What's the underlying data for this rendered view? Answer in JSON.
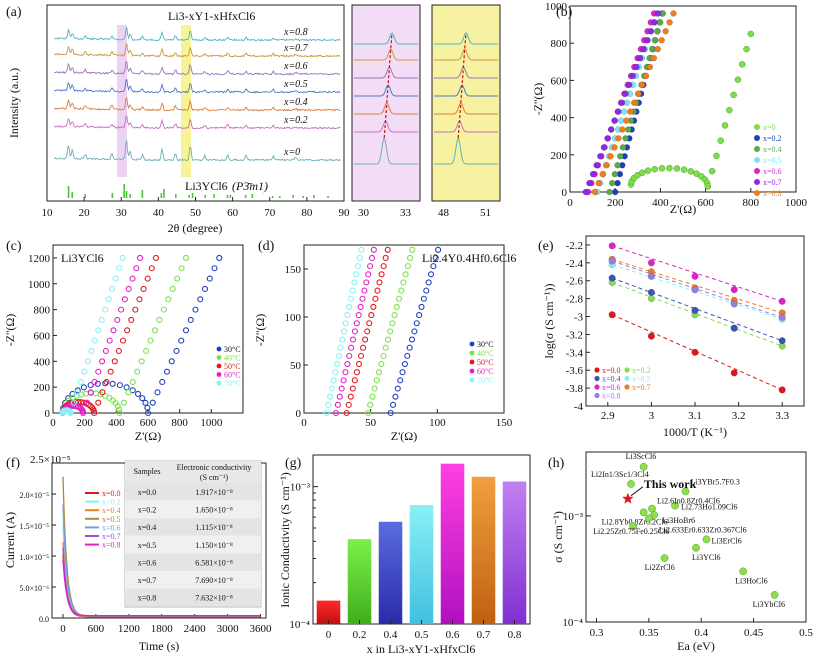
{
  "figure": {
    "panel_labels": [
      "(a)",
      "(b)",
      "(c)",
      "(d)",
      "(e)",
      "(f)",
      "(g)",
      "(h)"
    ]
  },
  "chart_data": [
    {
      "id": "a",
      "type": "line",
      "title": "Li3-xY1-xHfxCl6",
      "xlabel": "2θ (degree)",
      "ylabel": "Intensity (a.u.)",
      "xlim": [
        10,
        90
      ],
      "xticks": [
        10,
        20,
        30,
        40,
        50,
        60,
        70,
        80,
        90
      ],
      "zoom1_ticks": [
        "30",
        "33"
      ],
      "zoom2_ticks": [
        "48",
        "51"
      ],
      "series": [
        {
          "name": "x=0.8",
          "color": "#4fb7c2"
        },
        {
          "name": "x=0.7",
          "color": "#c89a3e"
        },
        {
          "name": "x=0.6",
          "color": "#9a76b8"
        },
        {
          "name": "x=0.5",
          "color": "#4e79c7"
        },
        {
          "name": "x=0.4",
          "color": "#e07b3a"
        },
        {
          "name": "x=0.2",
          "color": "#c76fc4"
        },
        {
          "name": "x=0",
          "color": "#6ab0b8"
        }
      ],
      "reference": {
        "label": "Li3YCl6",
        "space_group": "(P3̄m1)",
        "color": "#4cc43a",
        "peaks": [
          15.8,
          16.8,
          20.3,
          27.6,
          30.8,
          31.4,
          32.4,
          35.7,
          40.8,
          41.5,
          44.7,
          48.3,
          49.2,
          52.6,
          55.0,
          58.6,
          59.4,
          63.5,
          65.3,
          70.8,
          72.7,
          76.3,
          79.0,
          81.9,
          85.7
        ]
      }
    },
    {
      "id": "b",
      "type": "scatter",
      "xlabel": "Z'(Ω)",
      "ylabel": "-Z''(Ω)",
      "xlim": [
        0,
        1000
      ],
      "ylim": [
        0,
        1000
      ],
      "xticks": [
        0,
        200,
        400,
        600,
        800,
        1000
      ],
      "yticks": [
        0,
        200,
        400,
        600,
        800,
        1000
      ],
      "series": [
        {
          "name": "x=0",
          "color": "#7be04a"
        },
        {
          "name": "x=0.2",
          "color": "#1f3fbf"
        },
        {
          "name": "x=0.4",
          "color": "#5aaa4a"
        },
        {
          "name": "x=0.5",
          "color": "#7de6f5"
        },
        {
          "name": "x=0.6",
          "color": "#e020c8"
        },
        {
          "name": "x=0.7",
          "color": "#8a2be2"
        },
        {
          "name": "x=0.8",
          "color": "#f07d1c"
        }
      ]
    },
    {
      "id": "c",
      "type": "scatter",
      "title": "Li3YCl6",
      "xlabel": "Z'(Ω)",
      "ylabel": "-Z''(Ω)",
      "xlim": [
        0,
        1200
      ],
      "ylim": [
        0,
        1300
      ],
      "xticks": [
        0,
        200,
        400,
        600,
        800,
        1000
      ],
      "yticks": [
        0,
        200,
        400,
        600,
        800,
        1000,
        1200
      ],
      "series": [
        {
          "name": "30°C",
          "color": "#1f3fbf",
          "R": 600
        },
        {
          "name": "40°C",
          "color": "#7be04a",
          "R": 420
        },
        {
          "name": "50°C",
          "color": "#e0181c",
          "R": 260
        },
        {
          "name": "60°C",
          "color": "#e020c8",
          "R": 190
        },
        {
          "name": "70°C",
          "color": "#8af0f5",
          "R": 110
        }
      ]
    },
    {
      "id": "d",
      "type": "scatter",
      "title": "Li2.4Y0.4Hf0.6Cl6",
      "xlabel": "Z'(Ω)",
      "ylabel": "-Z''(Ω)",
      "xlim": [
        0,
        150
      ],
      "ylim": [
        0,
        175
      ],
      "xticks": [
        0,
        50,
        100,
        150
      ],
      "yticks": [
        0,
        50,
        100,
        150
      ],
      "series": [
        {
          "name": "30°C",
          "color": "#1f3fbf",
          "x0": 65
        },
        {
          "name": "40°C",
          "color": "#7be04a",
          "x0": 48
        },
        {
          "name": "50°C",
          "color": "#e0181c",
          "x0": 32
        },
        {
          "name": "60°C",
          "color": "#e020c8",
          "x0": 24
        },
        {
          "name": "70°C",
          "color": "#8af0f5",
          "x0": 17
        }
      ]
    },
    {
      "id": "e",
      "type": "scatter",
      "xlabel": "1000/T (K⁻¹)",
      "ylabel": "log(σ (S cm⁻¹))",
      "xlim": [
        2.85,
        3.35
      ],
      "ylim": [
        -4.0,
        -2.1
      ],
      "xticks": [
        2.9,
        3.0,
        3.1,
        3.2,
        3.3
      ],
      "yticks": [
        -4.0,
        -3.8,
        -3.6,
        -3.4,
        -3.2,
        -3.0,
        -2.8,
        -2.6,
        -2.4,
        -2.2
      ],
      "x": [
        2.91,
        3.0,
        3.1,
        3.19,
        3.3
      ],
      "series": [
        {
          "name": "x=0.0",
          "color": "#e0181c",
          "values": [
            -2.98,
            -3.22,
            -3.4,
            -3.63,
            -3.82
          ]
        },
        {
          "name": "x=0.2",
          "color": "#8ad95a",
          "values": [
            -2.62,
            -2.8,
            -2.98,
            -3.13,
            -3.33
          ]
        },
        {
          "name": "x=0.4",
          "color": "#3a55b5",
          "values": [
            -2.57,
            -2.73,
            -2.93,
            -3.13,
            -3.27
          ]
        },
        {
          "name": "x=0.5",
          "color": "#8af0f5",
          "values": [
            -2.42,
            -2.55,
            -2.7,
            -2.85,
            -3.03
          ]
        },
        {
          "name": "x=0.6",
          "color": "#e020c8",
          "values": [
            -2.21,
            -2.4,
            -2.55,
            -2.7,
            -2.83
          ]
        },
        {
          "name": "x=0.7",
          "color": "#f07d1c",
          "values": [
            -2.36,
            -2.5,
            -2.68,
            -2.82,
            -2.96
          ]
        },
        {
          "name": "x=0.8",
          "color": "#9b7de0",
          "values": [
            -2.38,
            -2.55,
            -2.7,
            -2.86,
            -3.01
          ]
        }
      ]
    },
    {
      "id": "f",
      "type": "line",
      "xlabel": "Time (s)",
      "ylabel": "Current (A)",
      "ylim_label": "2.5×10⁻⁵",
      "xlim": [
        -200,
        3700
      ],
      "ylim": [
        0,
        2.5e-05
      ],
      "xticks": [
        0,
        600,
        1200,
        1800,
        2400,
        3000,
        3600
      ],
      "ytick_labels": [
        "0.0",
        "5.0×10⁻⁶",
        "1.0×10⁻⁵",
        "1.5×10⁻⁵",
        "2.0×10⁻⁵"
      ],
      "series": [
        {
          "name": "x=0.0",
          "color": "#e0181c",
          "peak": 1e-05
        },
        {
          "name": "x=0.2",
          "color": "#8af0f5",
          "peak": 1.5e-05
        },
        {
          "name": "x=0.4",
          "color": "#f07d1c",
          "peak": 1.2e-05
        },
        {
          "name": "x=0.5",
          "color": "#a88a3a",
          "peak": 2.25e-05
        },
        {
          "name": "x=0.6",
          "color": "#7aa0e0",
          "peak": 1.8e-05
        },
        {
          "name": "x=0.7",
          "color": "#9b4de0",
          "peak": 1.1e-05
        },
        {
          "name": "x=0.8",
          "color": "#e020c8",
          "peak": 9e-06
        }
      ],
      "table": {
        "headers": [
          "Samples",
          "Electronic conductivity",
          "(S cm⁻¹)"
        ],
        "rows": [
          [
            "x=0.0",
            "1.917×10⁻⁸"
          ],
          [
            "x=0.2",
            "1.650×10⁻⁸"
          ],
          [
            "x=0.4",
            "1.115×10⁻⁸"
          ],
          [
            "x=0.5",
            "1.150×10⁻⁸"
          ],
          [
            "x=0.6",
            "6.581×10⁻⁸"
          ],
          [
            "x=0.7",
            "7.690×10⁻⁸"
          ],
          [
            "x=0.8",
            "7.632×10⁻⁸"
          ]
        ]
      }
    },
    {
      "id": "g",
      "type": "bar",
      "xlabel": "x in Li3-xY1-xHfxCl6",
      "ylabel": "Ionic Conductivity (S cm⁻¹)",
      "yscale": "log",
      "ylim": [
        0.0001,
        0.0017
      ],
      "ytick_labels": [
        "10⁻⁴",
        "10⁻³"
      ],
      "categories": [
        "0",
        "0.2",
        "0.4",
        "0.5",
        "0.6",
        "0.7",
        "0.8"
      ],
      "values": [
        0.000148,
        0.000415,
        0.000555,
        0.000735,
        0.00147,
        0.00118,
        0.00109
      ],
      "colors": [
        [
          "#ff2a2a",
          "#c01010"
        ],
        [
          "#7df04a",
          "#3fae1c"
        ],
        [
          "#5a6ce0",
          "#2a2aa8"
        ],
        [
          "#8af0f5",
          "#40c0e0"
        ],
        [
          "#ff40e0",
          "#b010c0"
        ],
        [
          "#f0a040",
          "#c06010"
        ],
        [
          "#c080f0",
          "#8030d0"
        ]
      ]
    },
    {
      "id": "h",
      "type": "scatter",
      "xlabel": "Ea (eV)",
      "ylabel": "σ (S cm⁻¹)",
      "yscale": "log",
      "xlim": [
        0.29,
        0.5
      ],
      "ylim": [
        0.0001,
        0.004
      ],
      "xticks": [
        0.3,
        0.35,
        0.4,
        0.45,
        0.5
      ],
      "ytick_labels": [
        "10⁻⁴",
        "10⁻³"
      ],
      "highlight": {
        "label": "This work",
        "x": 0.33,
        "y": 0.00145,
        "color": "#e0181c"
      },
      "points": [
        {
          "label": "Li3ScCl6",
          "x": 0.345,
          "y": 0.0029
        },
        {
          "label": "Li2In1/3Sc1/3Cl4",
          "x": 0.333,
          "y": 0.002
        },
        {
          "label": "Li3YBr5.7F0.3",
          "x": 0.385,
          "y": 0.0017
        },
        {
          "label": "Li2.73Ho1.09Cl6",
          "x": 0.375,
          "y": 0.00125
        },
        {
          "label": "Li2.6In0.8Zr0.4Cl6",
          "x": 0.353,
          "y": 0.00117
        },
        {
          "label": "Li3HoBr6",
          "x": 0.355,
          "y": 0.00102
        },
        {
          "label": "Li2.8Yb0.8Zr0.2Cl6",
          "x": 0.345,
          "y": 0.00108
        },
        {
          "label": "Li2.633Er0.633Zr0.367Cl6",
          "x": 0.35,
          "y": 0.00095
        },
        {
          "label": "Li2.25Zr0.75Fe0.25Cl6",
          "x": 0.335,
          "y": 0.0008
        },
        {
          "label": "Li3ErCl6",
          "x": 0.405,
          "y": 0.0006
        },
        {
          "label": "Li3YCl6",
          "x": 0.395,
          "y": 0.0005
        },
        {
          "label": "Li2ZrCl6",
          "x": 0.365,
          "y": 0.0004
        },
        {
          "label": "Li3HoCl6",
          "x": 0.44,
          "y": 0.0003
        },
        {
          "label": "Li3YbCl6",
          "x": 0.47,
          "y": 0.00018
        }
      ]
    }
  ]
}
